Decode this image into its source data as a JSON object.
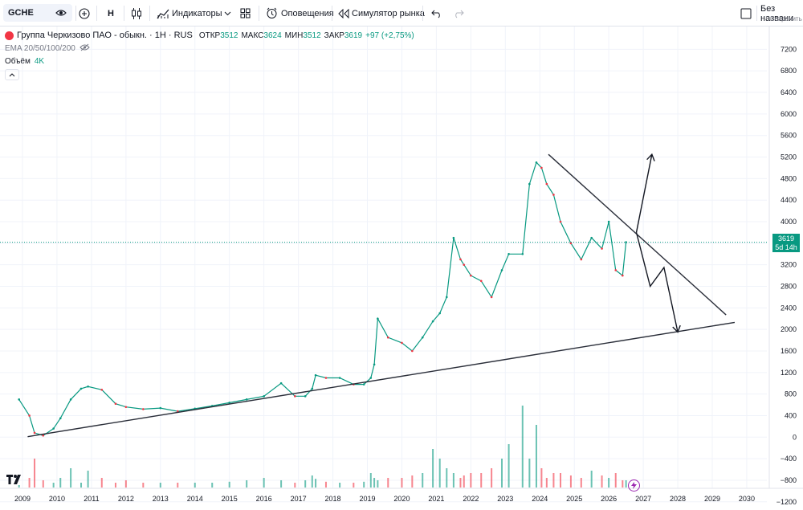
{
  "toolbar": {
    "symbol": "GCHE",
    "interval": "H",
    "indicators_label": "Индикаторы",
    "alerts_label": "Оповещения",
    "replay_label": "Симулятор рынка",
    "layout_title": "Без названи",
    "layout_sub": "Сохранить",
    "icons": [
      "symbol-search-icon",
      "add-compare-icon",
      "candles-icon",
      "indicators-icon",
      "layouts-icon",
      "alert-icon",
      "replay-icon",
      "undo-icon",
      "redo-icon",
      "fullscreen-icon"
    ]
  },
  "legend": {
    "title": "Группа Черкизово ПАО - обыкн. · 1Н · RUS",
    "o_label": "ОТКР",
    "o_val": "3512",
    "h_label": "МАКС",
    "h_val": "3624",
    "l_label": "МИН",
    "l_val": "3512",
    "c_label": "ЗАКР",
    "c_val": "3619",
    "change": "+97 (+2,75%)",
    "ema": "EMA 20/50/100/200",
    "volume_label": "Объём",
    "volume_val": "4K"
  },
  "price_badge": {
    "price": "3619",
    "countdown": "5d 14h"
  },
  "colors": {
    "up": "#089981",
    "down": "#f23645",
    "line": "#2a2e39"
  },
  "chart_data": {
    "type": "line",
    "y_ticks": [
      "7200",
      "6800",
      "6400",
      "6000",
      "5600",
      "5200",
      "4800",
      "4400",
      "4000",
      "3600",
      "3200",
      "2800",
      "2400",
      "2000",
      "1600",
      "1200",
      "800",
      "400",
      "0",
      "−400",
      "−800",
      "−1200"
    ],
    "x_ticks": [
      "2009",
      "2010",
      "2011",
      "2012",
      "2013",
      "2014",
      "2015",
      "2016",
      "2017",
      "2018",
      "2019",
      "2020",
      "2021",
      "2022",
      "2023",
      "2024",
      "2025",
      "2026",
      "2027",
      "2028",
      "2029",
      "2030"
    ],
    "ylim": [
      -1280,
      7400
    ],
    "x": [
      2008.9,
      2009.2,
      2009.35,
      2009.6,
      2009.9,
      2010.1,
      2010.4,
      2010.7,
      2010.9,
      2011.3,
      2011.7,
      2012.0,
      2012.5,
      2013.0,
      2013.5,
      2014.0,
      2014.5,
      2015.0,
      2015.5,
      2016.0,
      2016.5,
      2016.9,
      2017.2,
      2017.4,
      2017.5,
      2017.8,
      2018.2,
      2018.6,
      2018.9,
      2019.1,
      2019.2,
      2019.3,
      2019.6,
      2020.0,
      2020.3,
      2020.6,
      2020.9,
      2021.1,
      2021.3,
      2021.5,
      2021.7,
      2021.8,
      2022.0,
      2022.3,
      2022.6,
      2022.9,
      2023.1,
      2023.5,
      2023.7,
      2023.9,
      2024.05,
      2024.2,
      2024.4,
      2024.6,
      2024.9,
      2025.2,
      2025.5,
      2025.8,
      2026.0,
      2026.2,
      2026.4,
      2026.5
    ],
    "y": [
      700,
      400,
      80,
      30,
      160,
      350,
      700,
      900,
      940,
      880,
      620,
      560,
      520,
      540,
      480,
      530,
      580,
      640,
      700,
      760,
      1000,
      760,
      760,
      900,
      1150,
      1100,
      1100,
      980,
      980,
      1100,
      1350,
      2200,
      1850,
      1750,
      1600,
      1850,
      2150,
      2300,
      2600,
      3700,
      3300,
      3200,
      3000,
      2900,
      2600,
      3100,
      3400,
      3400,
      4700,
      5100,
      5000,
      4700,
      4500,
      4000,
      3600,
      3300,
      3700,
      3500,
      4000,
      3100,
      3000,
      3619
    ],
    "volume": [
      5,
      20,
      60,
      15,
      10,
      20,
      40,
      10,
      35,
      20,
      10,
      15,
      10,
      10,
      10,
      10,
      10,
      12,
      15,
      20,
      15,
      10,
      15,
      25,
      18,
      12,
      10,
      10,
      12,
      30,
      20,
      15,
      20,
      20,
      25,
      30,
      80,
      60,
      40,
      30,
      20,
      25,
      30,
      30,
      40,
      60,
      90,
      170,
      60,
      130,
      40,
      20,
      30,
      30,
      25,
      20,
      35,
      25,
      20,
      30,
      15,
      15
    ],
    "trendlines": [
      {
        "x1": 2009.15,
        "y1": 10,
        "x2": 2029.65,
        "y2": 2130
      },
      {
        "x1": 2024.25,
        "y1": 5250,
        "x2": 2029.4,
        "y2": 2270
      }
    ],
    "arrows": [
      {
        "points": [
          [
            2026.8,
            3800
          ],
          [
            2027.25,
            5250
          ]
        ]
      },
      {
        "points": [
          [
            2026.8,
            3800
          ],
          [
            2027.2,
            2800
          ],
          [
            2027.6,
            3150
          ],
          [
            2028.0,
            1950
          ]
        ]
      }
    ],
    "price_line": 3619,
    "grid": true,
    "legend_position": "top-left"
  }
}
